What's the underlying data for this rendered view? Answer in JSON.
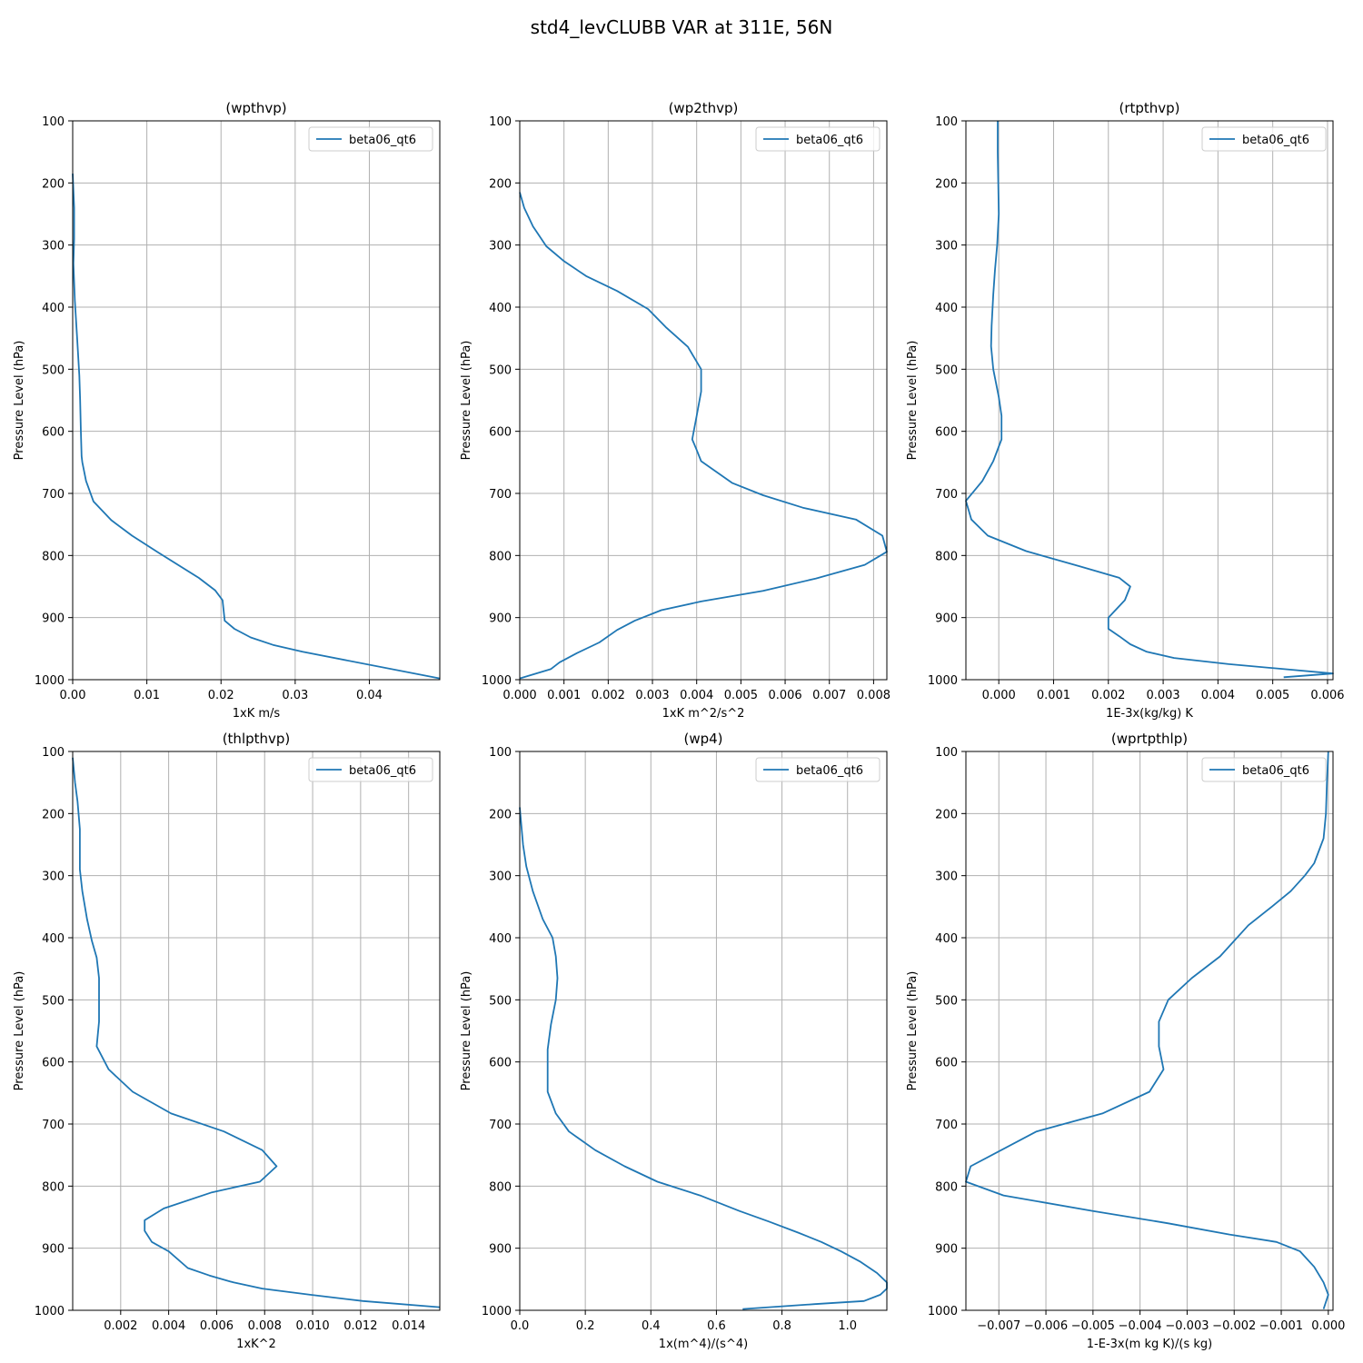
{
  "figure": {
    "suptitle": "std4_levCLUBB VAR at 311E, 56N",
    "line_color": "#1f77b4"
  },
  "chart_data": [
    {
      "type": "line",
      "title": "(wpthvp)",
      "xlabel": "1xK m/s",
      "ylabel": "Pressure Level (hPa)",
      "xlim": [
        0,
        0.0495
      ],
      "ylim": [
        1000,
        100
      ],
      "xticks": [
        0,
        0.01,
        0.02,
        0.03,
        0.04
      ],
      "xtick_labels": [
        "0.00",
        "0.01",
        "0.02",
        "0.03",
        "0.04"
      ],
      "yticks": [
        100,
        200,
        300,
        400,
        500,
        600,
        700,
        800,
        900,
        1000
      ],
      "ytick_labels": [
        "100",
        "200",
        "300",
        "400",
        "500",
        "600",
        "700",
        "800",
        "900",
        "1000"
      ],
      "grid": true,
      "legend": "upper right",
      "series": [
        {
          "name": "beta06_qt6",
          "x": [
            0,
            0.0002,
            0.0002,
            0.0001,
            0.0003,
            0.0006,
            0.0009,
            0.001,
            0.0011,
            0.0012,
            0.0013,
            0.0018,
            0.0028,
            0.0052,
            0.008,
            0.0115,
            0.017,
            0.0192,
            0.0202,
            0.0205,
            0.0218,
            0.024,
            0.027,
            0.031,
            0.0495
          ],
          "y": [
            185,
            240,
            290,
            330,
            390,
            450,
            510,
            550,
            600,
            640,
            650,
            680,
            713,
            743,
            768,
            795,
            836,
            856,
            872,
            905,
            918,
            932,
            944,
            955,
            998
          ]
        }
      ]
    },
    {
      "type": "line",
      "title": "(wp2thvp)",
      "xlabel": "1xK m^2/s^2",
      "ylabel": "Pressure Level (hPa)",
      "xlim": [
        0,
        0.0083
      ],
      "ylim": [
        1000,
        100
      ],
      "xticks": [
        0,
        0.001,
        0.002,
        0.003,
        0.004,
        0.005,
        0.006,
        0.007,
        0.008
      ],
      "xtick_labels": [
        "0.000",
        "0.001",
        "0.002",
        "0.003",
        "0.004",
        "0.005",
        "0.006",
        "0.007",
        "0.008"
      ],
      "yticks": [
        100,
        200,
        300,
        400,
        500,
        600,
        700,
        800,
        900,
        1000
      ],
      "ytick_labels": [
        "100",
        "200",
        "300",
        "400",
        "500",
        "600",
        "700",
        "800",
        "900",
        "1000"
      ],
      "grid": true,
      "legend": "upper right",
      "series": [
        {
          "name": "beta06_qt6",
          "x": [
            0,
            0.0001,
            0.0003,
            0.0006,
            0.001,
            0.0015,
            0.0022,
            0.0029,
            0.0033,
            0.0038,
            0.0041,
            0.0041,
            0.004,
            0.0039,
            0.004,
            0.0041,
            0.0048,
            0.0055,
            0.0064,
            0.0076,
            0.0082,
            0.0083,
            0.0078,
            0.0067,
            0.0055,
            0.0041,
            0.0032,
            0.0026,
            0.0022,
            0.0018,
            0.0013,
            0.0009,
            0.0007,
            0
          ],
          "y": [
            215,
            240,
            270,
            302,
            326,
            350,
            374,
            403,
            432,
            464,
            500,
            536,
            575,
            613,
            630,
            648,
            683,
            703,
            723,
            742,
            768,
            794,
            815,
            837,
            857,
            874,
            888,
            905,
            920,
            940,
            957,
            972,
            983,
            998
          ]
        }
      ]
    },
    {
      "type": "line",
      "title": "(rtpthvp)",
      "xlabel": "1E-3x(kg/kg) K",
      "ylabel": "Pressure Level (hPa)",
      "xlim": [
        -0.0006,
        0.0061
      ],
      "ylim": [
        1000,
        100
      ],
      "xticks": [
        0,
        0.001,
        0.002,
        0.003,
        0.004,
        0.005,
        0.006
      ],
      "xtick_labels": [
        "0.000",
        "0.001",
        "0.002",
        "0.003",
        "0.004",
        "0.005",
        "0.006"
      ],
      "yticks": [
        100,
        200,
        300,
        400,
        500,
        600,
        700,
        800,
        900,
        1000
      ],
      "ytick_labels": [
        "100",
        "200",
        "300",
        "400",
        "500",
        "600",
        "700",
        "800",
        "900",
        "1000"
      ],
      "grid": true,
      "legend": "upper right",
      "series": [
        {
          "name": "beta06_qt6",
          "x": [
            -2e-05,
            -2e-05,
            -1e-05,
            0,
            -3e-05,
            -7e-05,
            -0.0001,
            -0.00013,
            -0.00014,
            -0.0001,
            0,
            5e-05,
            5e-05,
            -0.0001,
            -0.0003,
            -0.0006,
            -0.0005,
            -0.0002,
            0.0005,
            0.0015,
            0.0022,
            0.0024,
            0.0023,
            0.002,
            0.002,
            0.0022,
            0.0024,
            0.0027,
            0.0032,
            0.0042,
            0.0061,
            0.0052
          ],
          "y": [
            100,
            150,
            200,
            250,
            300,
            340,
            380,
            430,
            463,
            500,
            545,
            575,
            613,
            648,
            680,
            712,
            742,
            768,
            793,
            818,
            836,
            850,
            872,
            900,
            918,
            930,
            943,
            955,
            965,
            975,
            990,
            996
          ]
        }
      ]
    },
    {
      "type": "line",
      "title": "(thlpthvp)",
      "xlabel": "1xK^2",
      "ylabel": "Pressure Level (hPa)",
      "xlim": [
        0,
        0.0153
      ],
      "ylim": [
        1000,
        100
      ],
      "xticks": [
        0.002,
        0.004,
        0.006,
        0.008,
        0.01,
        0.012,
        0.014
      ],
      "xtick_labels": [
        "0.002",
        "0.004",
        "0.006",
        "0.008",
        "0.010",
        "0.012",
        "0.014"
      ],
      "yticks": [
        100,
        200,
        300,
        400,
        500,
        600,
        700,
        800,
        900,
        1000
      ],
      "ytick_labels": [
        "100",
        "200",
        "300",
        "400",
        "500",
        "600",
        "700",
        "800",
        "900",
        "1000"
      ],
      "grid": true,
      "legend": "upper right",
      "series": [
        {
          "name": "beta06_qt6",
          "x": [
            0,
            0.0001,
            0.0002,
            0.0003,
            0.0003,
            0.0003,
            0.0004,
            0.0006,
            0.0008,
            0.001,
            0.0011,
            0.0011,
            0.0011,
            0.001,
            0.001,
            0.0015,
            0.0025,
            0.0041,
            0.0063,
            0.0079,
            0.0085,
            0.0078,
            0.0058,
            0.0038,
            0.003,
            0.003,
            0.0033,
            0.004,
            0.0048,
            0.0057,
            0.0067,
            0.0079,
            0.0099,
            0.0121,
            0.0153
          ],
          "y": [
            110,
            150,
            180,
            225,
            265,
            290,
            325,
            370,
            405,
            432,
            465,
            500,
            535,
            575,
            575,
            612,
            648,
            683,
            712,
            742,
            768,
            793,
            810,
            836,
            855,
            872,
            890,
            905,
            932,
            944,
            955,
            965,
            975,
            985,
            995
          ]
        }
      ]
    },
    {
      "type": "line",
      "title": "(wp4)",
      "xlabel": "1x(m^4)/(s^4)",
      "ylabel": "Pressure Level (hPa)",
      "xlim": [
        0,
        1.12
      ],
      "ylim": [
        1000,
        100
      ],
      "xticks": [
        0,
        0.2,
        0.4,
        0.6,
        0.8,
        1.0
      ],
      "xtick_labels": [
        "0.0",
        "0.2",
        "0.4",
        "0.6",
        "0.8",
        "1.0"
      ],
      "yticks": [
        100,
        200,
        300,
        400,
        500,
        600,
        700,
        800,
        900,
        1000
      ],
      "ytick_labels": [
        "100",
        "200",
        "300",
        "400",
        "500",
        "600",
        "700",
        "800",
        "900",
        "1000"
      ],
      "grid": true,
      "legend": "upper right",
      "series": [
        {
          "name": "beta06_qt6",
          "x": [
            0,
            0.005,
            0.01,
            0.02,
            0.04,
            0.07,
            0.1,
            0.11,
            0.115,
            0.11,
            0.095,
            0.085,
            0.085,
            0.11,
            0.15,
            0.23,
            0.32,
            0.42,
            0.55,
            0.67,
            0.76,
            0.85,
            0.92,
            0.98,
            1.04,
            1.09,
            1.12,
            1.12,
            1.1,
            1.05,
            0.9,
            0.68
          ],
          "y": [
            190,
            220,
            250,
            285,
            325,
            370,
            400,
            430,
            465,
            500,
            540,
            580,
            648,
            683,
            712,
            742,
            768,
            793,
            815,
            840,
            857,
            875,
            890,
            905,
            922,
            940,
            955,
            965,
            975,
            985,
            990,
            998
          ]
        }
      ]
    },
    {
      "type": "line",
      "title": "(wprtpthlp)",
      "xlabel": "1-E-3x(m kg K)/(s kg)",
      "ylabel": "Pressure Level (hPa)",
      "xlim": [
        -0.0077,
        0.0001
      ],
      "ylim": [
        1000,
        100
      ],
      "xticks": [
        -0.007,
        -0.006,
        -0.005,
        -0.004,
        -0.003,
        -0.002,
        -0.001,
        0
      ],
      "xtick_labels": [
        "−0.007",
        "−0.006",
        "−0.005",
        "−0.004",
        "−0.003",
        "−0.002",
        "−0.001",
        "0.000"
      ],
      "yticks": [
        100,
        200,
        300,
        400,
        500,
        600,
        700,
        800,
        900,
        1000
      ],
      "ytick_labels": [
        "100",
        "200",
        "300",
        "400",
        "500",
        "600",
        "700",
        "800",
        "900",
        "1000"
      ],
      "grid": true,
      "legend": "upper right",
      "series": [
        {
          "name": "beta06_qt6",
          "x": [
            0,
            -3e-05,
            -5e-05,
            -0.0001,
            -0.0003,
            -0.0005,
            -0.0008,
            -0.0012,
            -0.0017,
            -0.0023,
            -0.0029,
            -0.0034,
            -0.0036,
            -0.0036,
            -0.0035,
            -0.0038,
            -0.0048,
            -0.0062,
            -0.0076,
            -0.0077,
            -0.0069,
            -0.005,
            -0.0034,
            -0.0021,
            -0.0011,
            -0.0006,
            -0.0003,
            -0.0001,
            0,
            -0.0001
          ],
          "y": [
            100,
            150,
            200,
            240,
            280,
            300,
            325,
            350,
            380,
            430,
            465,
            500,
            535,
            575,
            612,
            648,
            683,
            712,
            768,
            793,
            815,
            840,
            860,
            878,
            890,
            905,
            930,
            955,
            975,
            998
          ]
        }
      ]
    }
  ]
}
